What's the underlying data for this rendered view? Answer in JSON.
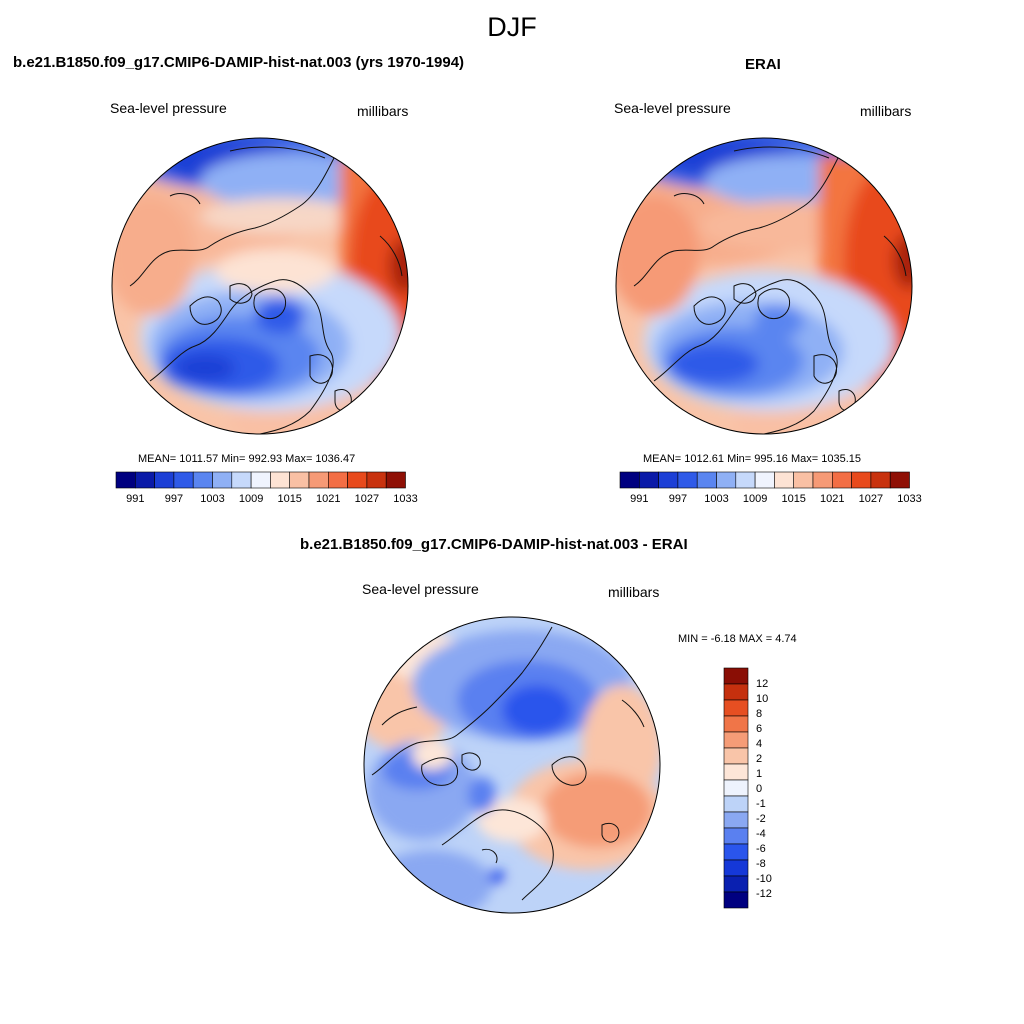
{
  "figure": {
    "title": "DJF"
  },
  "panels": {
    "model": {
      "title": "b.e21.B1850.f09_g17.CMIP6-DAMIP-hist-nat.003 (yrs 1970-1994)",
      "left_label": "Sea-level pressure",
      "right_label": "millibars",
      "stats": "MEAN= 1011.57  Min= 992.93  Max= 1036.47"
    },
    "obs": {
      "title": "ERAI",
      "left_label": "Sea-level pressure",
      "right_label": "millibars",
      "stats": "MEAN= 1012.61  Min= 995.16  Max= 1035.15"
    },
    "diff": {
      "title": "b.e21.B1850.f09_g17.CMIP6-DAMIP-hist-nat.003 - ERAI",
      "left_label": "Sea-level pressure",
      "right_label": "millibars",
      "stats": "MIN =  -6.18 MAX =   4.74"
    }
  },
  "colorbars": {
    "abs": {
      "colors": [
        "#000080",
        "#0a1aa8",
        "#1c3fd6",
        "#2f5ae8",
        "#5a85f0",
        "#8fb0f5",
        "#c6d9fb",
        "#f0f4fe",
        "#fde3d4",
        "#f9c0a4",
        "#f69a76",
        "#f36e45",
        "#e84a1c",
        "#c8320e",
        "#8f1005"
      ],
      "labels": [
        "991",
        "997",
        "1003",
        "1009",
        "1015",
        "1021",
        "1027",
        "1033"
      ]
    },
    "diff": {
      "colors": [
        "#000080",
        "#0a20b0",
        "#1538d8",
        "#2a55ec",
        "#5a80f0",
        "#8aa8f2",
        "#bdd3f8",
        "#eef3fd",
        "#fde6d8",
        "#f9c5a9",
        "#f59c77",
        "#f07548",
        "#e64f22",
        "#c5300e",
        "#8a0e05"
      ],
      "labels": [
        "12",
        "10",
        "8",
        "6",
        "4",
        "2",
        "1",
        "0",
        "-1",
        "-2",
        "-4",
        "-6",
        "-8",
        "-10",
        "-12"
      ]
    }
  }
}
